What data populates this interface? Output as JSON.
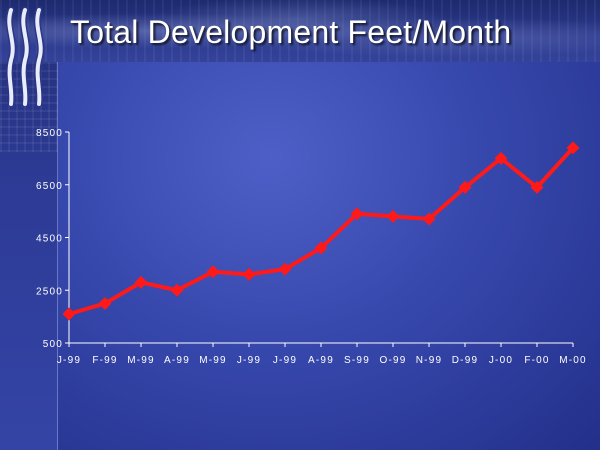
{
  "slide": {
    "title": "Total Development Feet/Month",
    "logo_icon": "corporate-wave-logo-icon"
  },
  "colors": {
    "background": "#3748ad",
    "line": "#ff1a1a",
    "axis": "#ffffff",
    "text": "#ffffff"
  },
  "chart_data": {
    "type": "line",
    "title": "Total Development Feet/Month",
    "xlabel": "",
    "ylabel": "",
    "categories": [
      "J-99",
      "F-99",
      "M-99",
      "A-99",
      "M-99",
      "J-99",
      "J-99",
      "A-99",
      "S-99",
      "O-99",
      "N-99",
      "D-99",
      "J-00",
      "F-00",
      "M-00"
    ],
    "series": [
      {
        "values": [
          1600,
          2000,
          2800,
          2500,
          3200,
          3100,
          3300,
          4100,
          5400,
          5300,
          5200,
          6400,
          7500,
          6400,
          7900
        ],
        "color": "#ff1a1a",
        "marker": "diamond"
      }
    ],
    "yticks": [
      500,
      2500,
      4500,
      6500,
      8500
    ],
    "ytick_labels": [
      "500",
      "2500",
      "4500",
      "6500",
      "8500"
    ],
    "ylim": [
      500,
      8500
    ],
    "grid": false,
    "legend": "none"
  }
}
